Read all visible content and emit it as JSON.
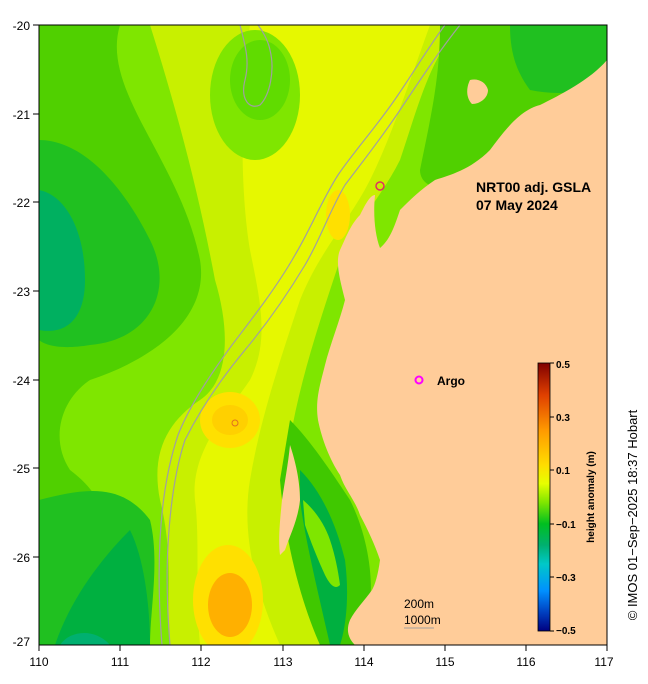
{
  "map": {
    "title_line1": "NRT00 adj. GSLA",
    "title_line2": "07 May 2024",
    "x_ticks": [
      "110",
      "111",
      "112",
      "113",
      "114",
      "115",
      "116",
      "117"
    ],
    "y_ticks": [
      "-20",
      "-21",
      "-22",
      "-23",
      "-24",
      "-25",
      "-26",
      "-27"
    ],
    "legend_label": "Argo",
    "scale": {
      "label1": "200m",
      "label2": "1000m"
    },
    "colorbar": {
      "title": "height anomaly (m)",
      "ticks": [
        "0.5",
        "0.3",
        "0.1",
        "−0.1",
        "−0.3",
        "−0.5"
      ]
    },
    "credit": "© IMOS 01−Sep−2025 18:37 Hobart"
  },
  "colors": {
    "land": "#ffcc99",
    "ocean_green": "#7fe600",
    "argo_marker": "#ff00ff",
    "bathymetry": "#a0a0a0"
  }
}
